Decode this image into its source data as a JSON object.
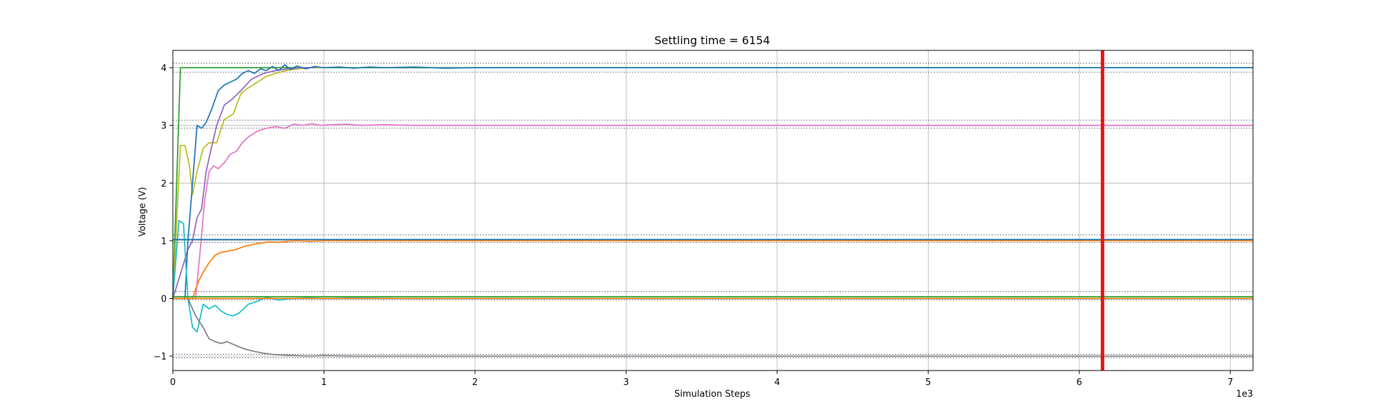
{
  "chart_data": {
    "type": "line",
    "title": "Settling time = 6154",
    "xlabel": "Simulation Steps",
    "ylabel": "Voltage (V)",
    "x_scale_label": "1e3",
    "xlim": [
      0,
      7150
    ],
    "ylim": [
      -1.25,
      4.3
    ],
    "x_ticks": [
      0,
      1000,
      2000,
      3000,
      4000,
      5000,
      6000,
      7000
    ],
    "x_tick_labels": [
      "0",
      "1",
      "2",
      "3",
      "4",
      "5",
      "6",
      "7"
    ],
    "y_ticks": [
      -1,
      0,
      1,
      2,
      3,
      4
    ],
    "y_tick_labels": [
      "−1",
      "0",
      "1",
      "2",
      "3",
      "4"
    ],
    "grid": true,
    "settling_time": 6154,
    "settling_line_color": "#ee1111",
    "tolerance_bands": [
      {
        "target": 4,
        "lower": 3.92,
        "upper": 4.08
      },
      {
        "target": 3,
        "lower": 2.95,
        "upper": 3.09
      },
      {
        "target": 1,
        "lower": 0.97,
        "upper": 1.1
      },
      {
        "target": 0,
        "lower": -0.02,
        "upper": 0.12
      },
      {
        "target": -1,
        "lower": -1.03,
        "upper": -0.97
      }
    ],
    "series": [
      {
        "color": "#2ca02c",
        "x": [
          0,
          50,
          7150
        ],
        "y": [
          0,
          4.0,
          4.0
        ]
      },
      {
        "color": "#bcbd22",
        "x": [
          0,
          50,
          80,
          110,
          130,
          160,
          200,
          240,
          290,
          340,
          400,
          450,
          500,
          560,
          620,
          680,
          750,
          820,
          900,
          1000
        ],
        "y": [
          0,
          2.65,
          2.65,
          2.3,
          1.8,
          2.2,
          2.6,
          2.7,
          2.7,
          3.1,
          3.2,
          3.55,
          3.65,
          3.75,
          3.85,
          3.9,
          3.95,
          3.98,
          4.0,
          4.0
        ]
      },
      {
        "color": "#9467bd",
        "x": [
          0,
          100,
          130,
          160,
          190,
          220,
          250,
          290,
          340,
          390,
          450,
          520,
          600,
          680,
          760,
          850,
          950
        ],
        "y": [
          0,
          0.85,
          1.0,
          1.4,
          1.55,
          2.2,
          2.55,
          3.0,
          3.35,
          3.45,
          3.6,
          3.8,
          3.9,
          3.95,
          3.98,
          4.0,
          4.0
        ]
      },
      {
        "color": "#1f77b4",
        "x": [
          0,
          80,
          100,
          130,
          160,
          190,
          220,
          260,
          300,
          340,
          380,
          420,
          460,
          500,
          540,
          580,
          620,
          660,
          700,
          740,
          780,
          820,
          880,
          940,
          1000,
          1100,
          1200,
          1300,
          1400,
          1600,
          1800,
          2000,
          2500,
          3000,
          4000,
          5000,
          6000,
          7150
        ],
        "y": [
          0,
          0,
          1.0,
          2.0,
          3.0,
          2.95,
          3.05,
          3.3,
          3.6,
          3.7,
          3.75,
          3.8,
          3.9,
          3.95,
          3.9,
          3.98,
          3.95,
          4.02,
          3.95,
          4.05,
          3.97,
          4.03,
          3.98,
          4.02,
          4.0,
          4.01,
          3.99,
          4.01,
          4.0,
          4.01,
          3.99,
          4.0,
          4.0,
          4.0,
          4.0,
          4.0,
          4.0,
          4.0
        ]
      },
      {
        "color": "#e377c2",
        "x": [
          0,
          150,
          180,
          210,
          240,
          270,
          300,
          340,
          380,
          420,
          460,
          500,
          560,
          620,
          680,
          740,
          800,
          860,
          920,
          980,
          1050,
          1150,
          1250,
          1400,
          1600,
          2000,
          3000,
          4000,
          5000,
          6000,
          7150
        ],
        "y": [
          0,
          0,
          0.8,
          1.7,
          2.2,
          2.3,
          2.25,
          2.35,
          2.5,
          2.55,
          2.7,
          2.8,
          2.9,
          2.95,
          2.98,
          2.95,
          3.02,
          3.0,
          3.03,
          3.0,
          3.01,
          3.02,
          3.0,
          3.01,
          3.0,
          3.0,
          3.0,
          3.0,
          3.0,
          3.0,
          3.0
        ]
      },
      {
        "color": "#ff7f0e",
        "x": [
          0,
          130,
          170,
          200,
          240,
          280,
          320,
          370,
          420,
          470,
          520,
          580,
          640,
          700,
          760,
          820,
          900,
          1000,
          1200,
          1500,
          2000,
          3000,
          4000,
          5000,
          6000,
          7150
        ],
        "y": [
          0,
          0,
          0.3,
          0.45,
          0.62,
          0.75,
          0.8,
          0.82,
          0.85,
          0.9,
          0.93,
          0.96,
          0.98,
          0.97,
          0.99,
          1.0,
          0.99,
          1.0,
          1.0,
          1.0,
          1.0,
          1.0,
          1.0,
          1.0,
          1.0,
          1.0
        ]
      },
      {
        "color": "#17becf",
        "x": [
          0,
          40,
          70,
          100,
          130,
          160,
          200,
          240,
          280,
          320,
          360,
          400,
          440,
          500,
          560,
          620,
          700,
          800,
          900,
          1000,
          1200,
          1500,
          2000,
          3000,
          4000,
          5000,
          6000,
          7150
        ],
        "y": [
          0,
          1.35,
          1.3,
          0.0,
          -0.5,
          -0.58,
          -0.1,
          -0.18,
          -0.12,
          -0.22,
          -0.28,
          -0.3,
          -0.25,
          -0.1,
          -0.05,
          0.02,
          -0.03,
          0.0,
          0.01,
          0.0,
          0.01,
          0.0,
          0.0,
          0.0,
          0.0,
          0.0,
          0.0,
          0.0
        ]
      },
      {
        "color": "#7f7f7f",
        "x": [
          0,
          100,
          150,
          200,
          240,
          280,
          320,
          360,
          420,
          480,
          540,
          600,
          660,
          720,
          800,
          900,
          1000,
          1200,
          1500,
          2000,
          3000,
          4000,
          5000,
          6000,
          7150
        ],
        "y": [
          0,
          0,
          -0.3,
          -0.5,
          -0.7,
          -0.75,
          -0.78,
          -0.75,
          -0.82,
          -0.88,
          -0.92,
          -0.95,
          -0.97,
          -0.98,
          -0.99,
          -1.0,
          -0.99,
          -1.0,
          -1.0,
          -1.0,
          -1.0,
          -1.0,
          -1.0,
          -1.0,
          -1.0
        ]
      },
      {
        "color": "#ff7f0e",
        "x": [
          0,
          7150
        ],
        "y": [
          0,
          0
        ]
      },
      {
        "color": "#2ca02c",
        "x": [
          0,
          7150
        ],
        "y": [
          0.03,
          0.03
        ]
      },
      {
        "color": "#1f77b4",
        "x": [
          0,
          7150
        ],
        "y": [
          1.02,
          1.02
        ]
      }
    ]
  }
}
